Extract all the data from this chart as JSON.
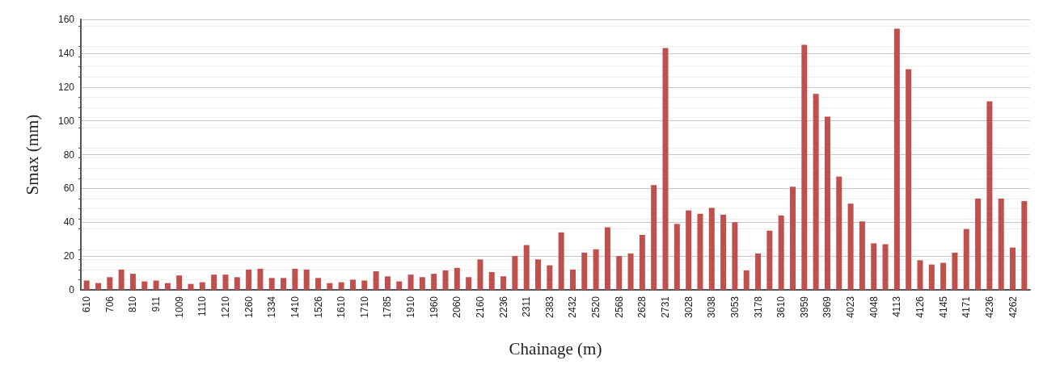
{
  "chart_data": {
    "type": "bar",
    "xlabel": "Chainage (m)",
    "ylabel": "Smax (mm)",
    "categories": [
      "610",
      null,
      "706",
      null,
      "810",
      null,
      "911",
      null,
      "1009",
      null,
      "1110",
      null,
      "1210",
      null,
      "1260",
      null,
      "1334",
      null,
      "1410",
      null,
      "1526",
      null,
      "1610",
      null,
      "1710",
      null,
      "1785",
      null,
      "1910",
      null,
      "1960",
      null,
      "2060",
      null,
      "2160",
      null,
      "2236",
      null,
      "2311",
      null,
      "2383",
      null,
      "2432",
      null,
      "2520",
      null,
      "2568",
      null,
      "2628",
      null,
      "2731",
      null,
      "3028",
      null,
      "3038",
      null,
      "3053",
      null,
      "3178",
      null,
      "3610",
      null,
      "3959",
      null,
      "3969",
      null,
      "4023",
      null,
      "4048",
      null,
      "4113",
      null,
      "4126",
      null,
      "4145",
      null,
      "4171",
      null,
      "4236",
      null,
      "4262",
      null
    ],
    "values": [
      5.5,
      4,
      7.5,
      12,
      9.5,
      5,
      5.5,
      4,
      8.5,
      3.5,
      4.5,
      9,
      9,
      7.5,
      12,
      12.5,
      7,
      7,
      12.5,
      12,
      7,
      4,
      4.5,
      6,
      5.5,
      11,
      8,
      5,
      9,
      7.5,
      9.5,
      11.5,
      13,
      7.5,
      18,
      10.5,
      8,
      20,
      26.5,
      18,
      14.5,
      34,
      12,
      22,
      24,
      37,
      20,
      21.5,
      32.5,
      62,
      143,
      39,
      47,
      45,
      48.5,
      44.5,
      40,
      11.5,
      21.5,
      35,
      44,
      61,
      145,
      116,
      102.5,
      67,
      51,
      40.5,
      27.5,
      27,
      154.5,
      130.5,
      17.5,
      15,
      16,
      22,
      36,
      54,
      111.5,
      54,
      25,
      52.5
    ],
    "color": "#c0504d",
    "ylim": [
      0,
      160
    ],
    "yticks": [
      0,
      20,
      40,
      60,
      80,
      100,
      120,
      140,
      160
    ],
    "grid": "y"
  }
}
